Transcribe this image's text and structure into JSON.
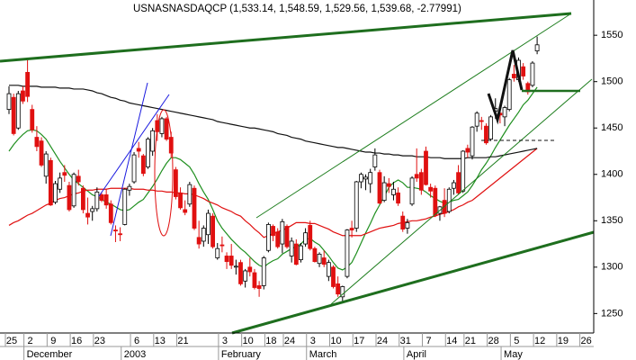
{
  "chart_data": {
    "type": "candlestick",
    "title": "USNASNASDAQCP (1,533.14, 1,548.59, 1,529.56, 1,539.68, -2.77991)",
    "categories": [
      "25",
      null,
      null,
      null,
      "2",
      null,
      null,
      null,
      null,
      "9",
      null,
      null,
      null,
      null,
      "16",
      null,
      null,
      null,
      null,
      "23",
      null,
      null,
      null,
      null,
      null,
      null,
      null,
      "6",
      null,
      null,
      null,
      null,
      "13",
      null,
      null,
      null,
      null,
      "21",
      null,
      null,
      null,
      null,
      null,
      null,
      null,
      null,
      "3",
      null,
      null,
      null,
      null,
      "10",
      null,
      null,
      null,
      null,
      "18",
      null,
      null,
      null,
      "24",
      null,
      null,
      null,
      null,
      "3",
      null,
      null,
      null,
      null,
      "10",
      null,
      null,
      null,
      null,
      "17",
      null,
      null,
      null,
      null,
      "24",
      null,
      null,
      null,
      null,
      "31",
      null,
      null,
      null,
      null,
      "7",
      null,
      null,
      null,
      null,
      "14",
      null,
      null,
      null,
      "21",
      null,
      null,
      null,
      null,
      "28",
      null,
      null,
      null,
      null,
      "5",
      null,
      null,
      null,
      null,
      "12",
      null,
      null,
      null,
      null,
      "19",
      null,
      null,
      null,
      null,
      "26"
    ],
    "months": [
      null,
      null,
      null,
      null,
      "December",
      null,
      null,
      null,
      null,
      null,
      null,
      null,
      null,
      null,
      null,
      null,
      null,
      null,
      null,
      null,
      null,
      null,
      null,
      null,
      null,
      "2003",
      null,
      null,
      null,
      null,
      null,
      null,
      null,
      null,
      null,
      null,
      null,
      null,
      null,
      null,
      null,
      null,
      null,
      null,
      null,
      null,
      "February",
      null,
      null,
      null,
      null,
      null,
      null,
      null,
      null,
      null,
      null,
      null,
      null,
      null,
      null,
      null,
      null,
      null,
      null,
      "March",
      null,
      null,
      null,
      null,
      null,
      null,
      null,
      null,
      null,
      null,
      null,
      null,
      null,
      null,
      null,
      null,
      null,
      null,
      null,
      null,
      "April",
      null,
      null,
      null,
      null,
      null,
      null,
      null,
      null,
      null,
      null,
      null,
      null,
      null,
      null,
      null,
      null,
      null,
      null,
      null,
      null,
      "May",
      null,
      null,
      null,
      null,
      null,
      null,
      null,
      null,
      null,
      null,
      null,
      null,
      null,
      null,
      null,
      null,
      null
    ],
    "ohlc": [
      [
        1470,
        1495,
        1465,
        1487
      ],
      [
        1483,
        1487,
        1442,
        1444
      ],
      [
        1450,
        1490,
        1448,
        1487
      ],
      [
        1490,
        1495,
        1476,
        1479
      ],
      [
        1510,
        1525,
        1478,
        1484
      ],
      [
        1470,
        1475,
        1445,
        1448
      ],
      [
        1440,
        1452,
        1425,
        1430
      ],
      [
        1436,
        1440,
        1408,
        1410
      ],
      [
        1398,
        1425,
        1390,
        1422
      ],
      [
        1415,
        1418,
        1366,
        1367
      ],
      [
        1370,
        1393,
        1368,
        1390
      ],
      [
        1384,
        1402,
        1380,
        1396
      ],
      [
        1402,
        1410,
        1392,
        1399
      ],
      [
        1388,
        1392,
        1360,
        1362
      ],
      [
        1366,
        1402,
        1364,
        1400
      ],
      [
        1398,
        1405,
        1388,
        1392
      ],
      [
        1385,
        1388,
        1358,
        1362
      ],
      [
        1358,
        1375,
        1346,
        1354
      ],
      [
        1360,
        1366,
        1350,
        1363
      ],
      [
        1363,
        1386,
        1360,
        1381
      ],
      [
        1378,
        1380,
        1370,
        1372
      ],
      [
        1378,
        1384,
        1363,
        1367
      ],
      [
        1368,
        1372,
        1346,
        1348
      ],
      [
        1340,
        1345,
        1327,
        1339
      ],
      [
        1336,
        1343,
        1328,
        1335
      ],
      [
        1346,
        1385,
        1345,
        1384
      ],
      [
        1383,
        1390,
        1377,
        1387
      ],
      [
        1392,
        1424,
        1390,
        1421
      ],
      [
        1428,
        1435,
        1418,
        1425
      ],
      [
        1420,
        1422,
        1398,
        1401
      ],
      [
        1408,
        1440,
        1406,
        1438
      ],
      [
        1425,
        1450,
        1420,
        1447
      ],
      [
        1458,
        1465,
        1436,
        1446
      ],
      [
        1444,
        1462,
        1440,
        1460
      ],
      [
        1460,
        1462,
        1436,
        1438
      ],
      [
        1440,
        1446,
        1418,
        1423
      ],
      [
        1405,
        1408,
        1373,
        1376
      ],
      [
        1380,
        1386,
        1362,
        1364
      ],
      [
        1362,
        1372,
        1356,
        1359
      ],
      [
        1368,
        1392,
        1365,
        1389
      ],
      [
        1385,
        1388,
        1340,
        1342
      ],
      [
        1332,
        1350,
        1320,
        1325
      ],
      [
        1328,
        1345,
        1322,
        1342
      ],
      [
        1335,
        1362,
        1325,
        1358
      ],
      [
        1355,
        1358,
        1320,
        1322
      ],
      [
        1310,
        1326,
        1308,
        1320
      ],
      [
        1324,
        1333,
        1316,
        1323
      ],
      [
        1312,
        1316,
        1298,
        1306
      ],
      [
        1312,
        1325,
        1298,
        1302
      ],
      [
        1300,
        1308,
        1292,
        1301
      ],
      [
        1305,
        1308,
        1280,
        1282
      ],
      [
        1285,
        1298,
        1278,
        1296
      ],
      [
        1300,
        1310,
        1290,
        1295
      ],
      [
        1294,
        1298,
        1276,
        1278
      ],
      [
        1280,
        1285,
        1268,
        1277
      ],
      [
        1280,
        1312,
        1276,
        1310
      ],
      [
        1318,
        1348,
        1316,
        1346
      ],
      [
        1344,
        1346,
        1328,
        1334
      ],
      [
        1338,
        1342,
        1320,
        1322
      ],
      [
        1325,
        1352,
        1315,
        1349
      ],
      [
        1344,
        1346,
        1320,
        1322
      ],
      [
        1312,
        1332,
        1305,
        1328
      ],
      [
        1325,
        1330,
        1302,
        1303
      ],
      [
        1308,
        1326,
        1305,
        1323
      ],
      [
        1325,
        1342,
        1322,
        1337
      ],
      [
        1345,
        1350,
        1318,
        1320
      ],
      [
        1320,
        1322,
        1305,
        1306
      ],
      [
        1304,
        1316,
        1300,
        1314
      ],
      [
        1310,
        1318,
        1300,
        1303
      ],
      [
        1290,
        1308,
        1285,
        1305
      ],
      [
        1300,
        1302,
        1277,
        1279
      ],
      [
        1282,
        1290,
        1268,
        1271
      ],
      [
        1268,
        1280,
        1262,
        1279
      ],
      [
        1290,
        1341,
        1288,
        1340
      ],
      [
        1342,
        1350,
        1332,
        1340
      ],
      [
        1342,
        1393,
        1338,
        1392
      ],
      [
        1392,
        1402,
        1385,
        1400
      ],
      [
        1395,
        1400,
        1383,
        1397
      ],
      [
        1390,
        1406,
        1380,
        1402
      ],
      [
        1408,
        1428,
        1404,
        1421
      ],
      [
        1402,
        1405,
        1368,
        1369
      ],
      [
        1372,
        1398,
        1370,
        1391
      ],
      [
        1390,
        1396,
        1380,
        1387
      ],
      [
        1378,
        1392,
        1372,
        1384
      ],
      [
        1380,
        1386,
        1366,
        1369
      ],
      [
        1355,
        1360,
        1338,
        1341
      ],
      [
        1342,
        1352,
        1336,
        1348
      ],
      [
        1368,
        1398,
        1366,
        1396
      ],
      [
        1400,
        1428,
        1392,
        1396
      ],
      [
        1402,
        1406,
        1378,
        1383
      ],
      [
        1425,
        1430,
        1388,
        1389
      ],
      [
        1386,
        1390,
        1375,
        1382
      ],
      [
        1385,
        1388,
        1354,
        1356
      ],
      [
        1358,
        1366,
        1350,
        1365
      ],
      [
        1372,
        1385,
        1354,
        1358
      ],
      [
        1360,
        1386,
        1358,
        1384
      ],
      [
        1385,
        1394,
        1378,
        1391
      ],
      [
        1402,
        1410,
        1378,
        1380
      ],
      [
        1382,
        1426,
        1380,
        1425
      ],
      [
        1428,
        1432,
        1418,
        1424
      ],
      [
        1420,
        1452,
        1416,
        1451
      ],
      [
        1452,
        1468,
        1446,
        1466
      ],
      [
        1458,
        1462,
        1448,
        1457
      ],
      [
        1452,
        1455,
        1432,
        1434
      ],
      [
        1438,
        1464,
        1436,
        1462
      ],
      [
        1468,
        1482,
        1460,
        1471
      ],
      [
        1466,
        1470,
        1455,
        1464
      ],
      [
        1462,
        1474,
        1452,
        1472
      ],
      [
        1470,
        1504,
        1468,
        1502
      ],
      [
        1508,
        1518,
        1500,
        1504
      ],
      [
        1502,
        1526,
        1500,
        1523
      ],
      [
        1516,
        1520,
        1502,
        1506
      ],
      [
        1498,
        1500,
        1486,
        1489
      ],
      [
        1496,
        1522,
        1494,
        1520
      ],
      [
        1533.14,
        1548.59,
        1529.56,
        1539.68
      ],
      null,
      null,
      null,
      null,
      null,
      null,
      null,
      null,
      null,
      null
    ],
    "up_color": "#ffffff",
    "down_color": "#e01010",
    "lines": [
      {
        "color": "#1f8f1f",
        "values": [
          1425,
          1432,
          1438,
          1443,
          1447,
          1448,
          1447,
          1443,
          1438,
          1430,
          1422,
          1414,
          1407,
          1400,
          1394,
          1390,
          1386,
          1382,
          1378,
          1376,
          1373,
          1370,
          1368,
          1365,
          1362,
          1361,
          1362,
          1366,
          1370,
          1373,
          1380,
          1387,
          1395,
          1404,
          1412,
          1418,
          1418,
          1416,
          1412,
          1408,
          1400,
          1390,
          1381,
          1373,
          1362,
          1350,
          1342,
          1336,
          1330,
          1325,
          1320,
          1316,
          1311,
          1306,
          1302,
          1300,
          1304,
          1307,
          1309,
          1314,
          1317,
          1320,
          1322,
          1325,
          1330,
          1331,
          1327,
          1324,
          1318,
          1312,
          1305,
          1299,
          1297,
          1300,
          1305,
          1315,
          1326,
          1337,
          1347,
          1358,
          1367,
          1376,
          1386,
          1391,
          1394,
          1391,
          1386,
          1386,
          1385,
          1384,
          1381,
          1377,
          1374,
          1371,
          1369,
          1370,
          1372,
          1373,
          1377,
          1381,
          1388,
          1396,
          1405,
          1412,
          1420,
          1429,
          1437,
          1445,
          1453,
          1460,
          1467,
          1475,
          1480,
          1487,
          1494,
          null,
          null,
          null,
          null,
          null,
          null,
          null,
          null,
          null,
          null
        ]
      },
      {
        "color": "#e01010",
        "values": [
          1345,
          1348,
          1350,
          1353,
          1356,
          1358,
          1361,
          1364,
          1367,
          1369,
          1372,
          1374,
          1375,
          1377,
          1379,
          1380,
          1382,
          1383,
          1383,
          1384,
          1384,
          1384,
          1385,
          1385,
          1385,
          1385,
          1385,
          1384,
          1384,
          1384,
          1383,
          1383,
          1382,
          1382,
          1381,
          1381,
          1380,
          1380,
          1379,
          1379,
          1378,
          1376,
          1374,
          1371,
          1369,
          1367,
          1364,
          1362,
          1360,
          1357,
          1355,
          1350,
          1346,
          1341,
          1337,
          1332,
          1334,
          1336,
          1338,
          1340,
          1342,
          1345,
          1348,
          1348,
          1348,
          1347,
          1347,
          1345,
          1343,
          1341,
          1338,
          1336,
          1334,
          1334,
          1334,
          1334,
          1334,
          1336,
          1338,
          1340,
          1342,
          1343,
          1344,
          1345,
          1347,
          1348,
          1349,
          1350,
          1350,
          1351,
          1352,
          1354,
          1355,
          1357,
          1358,
          1360,
          1362,
          1365,
          1367,
          1370,
          1372,
          1376,
          1380,
          1384,
          1388,
          1392,
          1396,
          1400,
          1404,
          1408,
          1412,
          1416,
          1420,
          1424,
          1428,
          null,
          null,
          null,
          null,
          null,
          null,
          null,
          null,
          null,
          null
        ]
      },
      {
        "color": "#111111",
        "values": [
          1496,
          1496,
          1496,
          1495,
          1495,
          1495,
          1495,
          1494,
          1494,
          1494,
          1494,
          1493,
          1493,
          1493,
          1492,
          1492,
          1492,
          1491,
          1490,
          1488,
          1487,
          1485,
          1483,
          1482,
          1480,
          1479,
          1477,
          1476,
          1475,
          1474,
          1473,
          1472,
          1471,
          1470,
          1469,
          1468,
          1467,
          1466,
          1465,
          1464,
          1463,
          1462,
          1461,
          1460,
          1459,
          1457,
          1456,
          1455,
          1454,
          1453,
          1452,
          1451,
          1450,
          1450,
          1449,
          1448,
          1447,
          1446,
          1444,
          1443,
          1442,
          1440,
          1439,
          1438,
          1436,
          1435,
          1434,
          1433,
          1432,
          1431,
          1430,
          1429,
          1429,
          1428,
          1427,
          1426,
          1425,
          1424,
          1424,
          1423,
          1423,
          1422,
          1422,
          1421,
          1421,
          1420,
          1420,
          1420,
          1419,
          1419,
          1419,
          1418,
          1418,
          1418,
          1417,
          1417,
          1417,
          1417,
          1417,
          1418,
          1418,
          1418,
          1418,
          1418,
          1419,
          1419,
          1420,
          1421,
          1422,
          1423,
          1424,
          1425,
          1426,
          1427,
          1428,
          null,
          null,
          null,
          null,
          null,
          null,
          null,
          null,
          null,
          null
        ]
      }
    ],
    "ylim": [
      1229,
      1588
    ],
    "yticks": [
      1250,
      1300,
      1350,
      1400,
      1450,
      1500,
      1550
    ]
  }
}
